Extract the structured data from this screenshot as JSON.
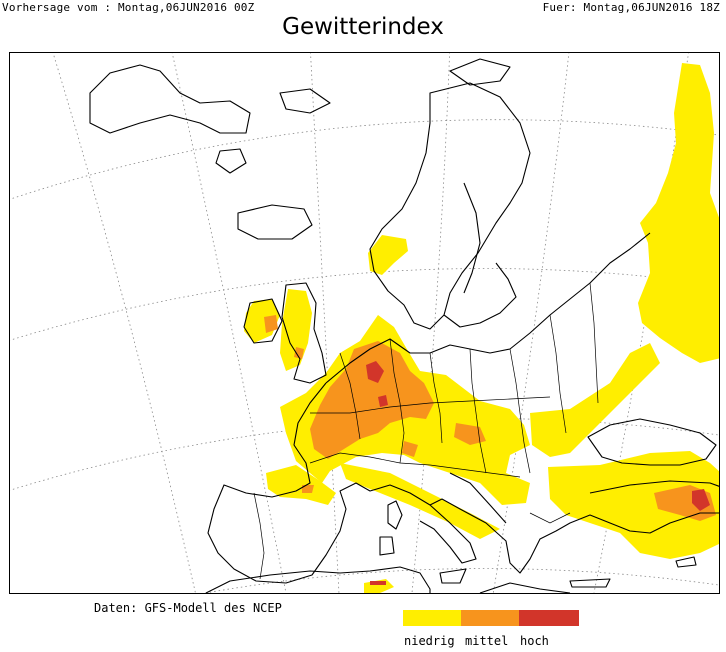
{
  "header": {
    "forecast_from": "Vorhersage vom : Montag,06JUN2016 00Z",
    "valid_for": "Fuer: Montag,06JUN2016 18Z"
  },
  "title": "Gewitterindex",
  "credit": "Daten: GFS-Modell des NCEP",
  "legend": [
    {
      "label": "niedrig",
      "color": "#ffee00"
    },
    {
      "label": "mittel",
      "color": "#f7941d"
    },
    {
      "label": "hoch",
      "color": "#d2352a"
    }
  ],
  "map": {
    "graticule_color": "#888888",
    "coast_color": "#000000"
  }
}
